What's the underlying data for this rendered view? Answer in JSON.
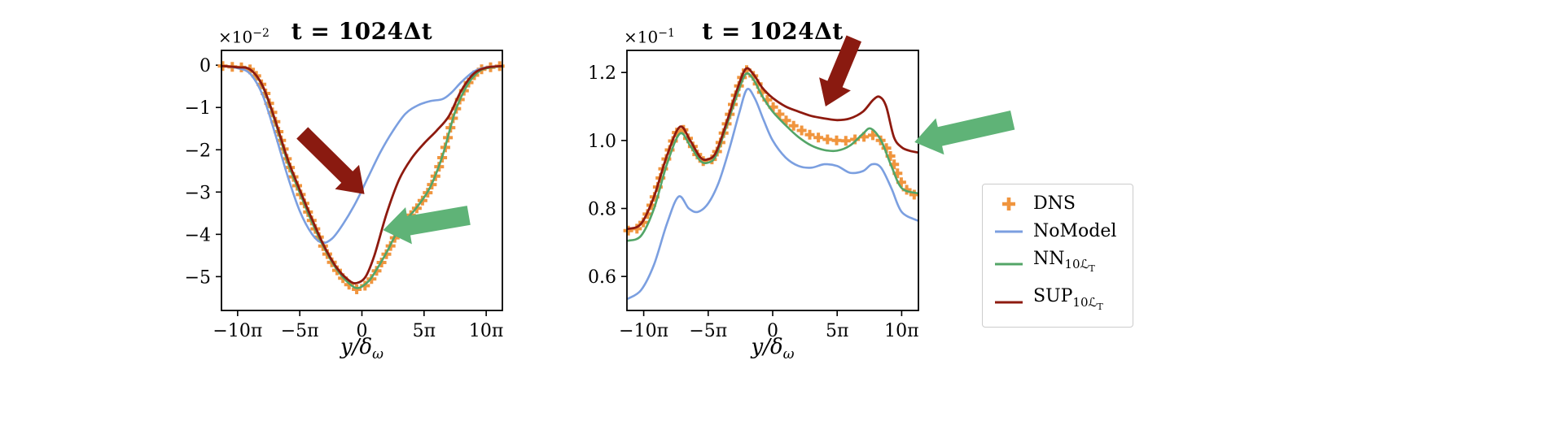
{
  "colors": {
    "dns": "#F0953E",
    "nomodel": "#7B9FE0",
    "nn": "#53A567",
    "sup": "#8E1A0F",
    "arrow_red": "#8A1A10",
    "arrow_green": "#5FB377",
    "axis": "#000000",
    "legend_border": "#cccccc"
  },
  "legend": {
    "items": [
      {
        "label": "DNS",
        "sub": "",
        "subsub": "",
        "type": "marker",
        "color": "dns"
      },
      {
        "label": "NoModel",
        "sub": "",
        "subsub": "",
        "type": "line",
        "color": "nomodel"
      },
      {
        "label": "NN",
        "sub": "10ℒ",
        "subsub": "T",
        "type": "line",
        "color": "nn"
      },
      {
        "label": "SUP",
        "sub": "10ℒ",
        "subsub": "T",
        "type": "line",
        "color": "sup"
      }
    ]
  },
  "chart_data": [
    {
      "type": "line",
      "title": "t = 1024Δt",
      "offset": {
        "base": "×10",
        "exp": "−2"
      },
      "xlabel": {
        "main": "y/δ",
        "sub": "ω"
      },
      "xlim": [
        -11.3,
        11.3
      ],
      "ylim": [
        -5.8,
        0.35
      ],
      "grid": false,
      "xticks": [
        {
          "v": -10,
          "label": "−10π"
        },
        {
          "v": -5,
          "label": "−5π"
        },
        {
          "v": 0,
          "label": "0"
        },
        {
          "v": 5,
          "label": "5π"
        },
        {
          "v": 10,
          "label": "10π"
        }
      ],
      "yticks": [
        {
          "v": 0,
          "label": "0"
        },
        {
          "v": -1,
          "label": "−1"
        },
        {
          "v": -2,
          "label": "−2"
        },
        {
          "v": -3,
          "label": "−3"
        },
        {
          "v": -4,
          "label": "−4"
        },
        {
          "v": -5,
          "label": "−5"
        }
      ],
      "series": [
        {
          "name": "DNS",
          "style": "marker",
          "color": "dns",
          "points": [
            [
              -11.2,
              -0.02
            ],
            [
              -10,
              -0.05
            ],
            [
              -9,
              -0.1
            ],
            [
              -8,
              -0.5
            ],
            [
              -7,
              -1.3
            ],
            [
              -6,
              -2.25
            ],
            [
              -5,
              -3.0
            ],
            [
              -4,
              -3.7
            ],
            [
              -3,
              -4.35
            ],
            [
              -2,
              -4.85
            ],
            [
              -1,
              -5.2
            ],
            [
              -0.3,
              -5.3
            ],
            [
              0.5,
              -5.15
            ],
            [
              1,
              -4.95
            ],
            [
              2,
              -4.45
            ],
            [
              2.7,
              -4.05
            ],
            [
              3.5,
              -3.7
            ],
            [
              4.5,
              -3.35
            ],
            [
              5.5,
              -2.9
            ],
            [
              6.5,
              -2.15
            ],
            [
              7.5,
              -1.1
            ],
            [
              8.5,
              -0.45
            ],
            [
              9.5,
              -0.12
            ],
            [
              10.5,
              -0.04
            ],
            [
              11.2,
              -0.02
            ]
          ]
        },
        {
          "name": "NoModel",
          "style": "line",
          "color": "nomodel",
          "points": [
            [
              -11.2,
              -0.02
            ],
            [
              -10,
              -0.07
            ],
            [
              -9,
              -0.2
            ],
            [
              -8,
              -0.7
            ],
            [
              -7,
              -1.6
            ],
            [
              -6,
              -2.6
            ],
            [
              -5,
              -3.45
            ],
            [
              -4,
              -4.0
            ],
            [
              -3.2,
              -4.2
            ],
            [
              -2.4,
              -4.1
            ],
            [
              -1.5,
              -3.75
            ],
            [
              -0.5,
              -3.25
            ],
            [
              0.5,
              -2.65
            ],
            [
              1.5,
              -2.05
            ],
            [
              2.5,
              -1.55
            ],
            [
              3.5,
              -1.15
            ],
            [
              4.5,
              -0.95
            ],
            [
              5.5,
              -0.85
            ],
            [
              6.5,
              -0.8
            ],
            [
              7.2,
              -0.65
            ],
            [
              8,
              -0.4
            ],
            [
              9,
              -0.15
            ],
            [
              10,
              -0.05
            ],
            [
              11.2,
              -0.02
            ]
          ]
        },
        {
          "name": "NN10LT",
          "style": "line",
          "color": "nn",
          "points": [
            [
              -11.2,
              -0.02
            ],
            [
              -10,
              -0.05
            ],
            [
              -9,
              -0.1
            ],
            [
              -8,
              -0.5
            ],
            [
              -7,
              -1.32
            ],
            [
              -6,
              -2.27
            ],
            [
              -5,
              -3.02
            ],
            [
              -4,
              -3.72
            ],
            [
              -3,
              -4.34
            ],
            [
              -2,
              -4.84
            ],
            [
              -1,
              -5.17
            ],
            [
              -0.3,
              -5.27
            ],
            [
              0.5,
              -5.12
            ],
            [
              1,
              -4.92
            ],
            [
              2,
              -4.42
            ],
            [
              2.7,
              -4.02
            ],
            [
              3.5,
              -3.68
            ],
            [
              4.5,
              -3.33
            ],
            [
              5.5,
              -2.88
            ],
            [
              6.5,
              -2.13
            ],
            [
              7.5,
              -1.1
            ],
            [
              8.5,
              -0.46
            ],
            [
              9.5,
              -0.13
            ],
            [
              10.5,
              -0.05
            ],
            [
              11.2,
              -0.03
            ]
          ]
        },
        {
          "name": "SUP10LT",
          "style": "line",
          "color": "sup",
          "points": [
            [
              -11.2,
              -0.02
            ],
            [
              -10,
              -0.05
            ],
            [
              -9,
              -0.1
            ],
            [
              -8,
              -0.48
            ],
            [
              -7,
              -1.28
            ],
            [
              -6,
              -2.2
            ],
            [
              -5,
              -2.95
            ],
            [
              -4,
              -3.65
            ],
            [
              -3,
              -4.3
            ],
            [
              -2,
              -4.8
            ],
            [
              -1,
              -5.1
            ],
            [
              -0.4,
              -5.15
            ],
            [
              0.3,
              -5.0
            ],
            [
              1,
              -4.5
            ],
            [
              2,
              -3.5
            ],
            [
              3,
              -2.7
            ],
            [
              4,
              -2.2
            ],
            [
              5,
              -1.85
            ],
            [
              6,
              -1.55
            ],
            [
              7,
              -1.2
            ],
            [
              8,
              -0.6
            ],
            [
              9,
              -0.2
            ],
            [
              10,
              -0.06
            ],
            [
              11.2,
              -0.02
            ]
          ]
        }
      ],
      "arrows": [
        {
          "name": "dark-red-arrow",
          "color": "arrow_red",
          "tail": [
            -4.8,
            -1.6
          ],
          "head": [
            0.2,
            -3.05
          ],
          "sw": 10,
          "hw": 21,
          "hl": 30
        },
        {
          "name": "green-arrow",
          "color": "arrow_green",
          "tail": [
            8.6,
            -3.55
          ],
          "head": [
            1.7,
            -3.9
          ],
          "sw": 12,
          "hw": 23,
          "hl": 32
        }
      ]
    },
    {
      "type": "line",
      "title": "t = 1024Δt",
      "offset": {
        "base": "×10",
        "exp": "−1"
      },
      "xlabel": {
        "main": "y/δ",
        "sub": "ω"
      },
      "xlim": [
        -11.3,
        11.3
      ],
      "ylim": [
        0.5,
        1.265
      ],
      "grid": false,
      "xticks": [
        {
          "v": -10,
          "label": "−10π"
        },
        {
          "v": -5,
          "label": "−5π"
        },
        {
          "v": 0,
          "label": "0"
        },
        {
          "v": 5,
          "label": "5π"
        },
        {
          "v": 10,
          "label": "10π"
        }
      ],
      "yticks": [
        {
          "v": 1.2,
          "label": "1.2"
        },
        {
          "v": 1.0,
          "label": "1.0"
        },
        {
          "v": 0.8,
          "label": "0.8"
        },
        {
          "v": 0.6,
          "label": "0.6"
        }
      ],
      "series": [
        {
          "name": "DNS",
          "style": "marker",
          "color": "dns",
          "points": [
            [
              -11.2,
              0.735
            ],
            [
              -10.2,
              0.75
            ],
            [
              -9.2,
              0.83
            ],
            [
              -8.2,
              0.95
            ],
            [
              -7.2,
              1.035
            ],
            [
              -6.4,
              0.995
            ],
            [
              -5.6,
              0.945
            ],
            [
              -5,
              0.94
            ],
            [
              -4.4,
              0.96
            ],
            [
              -3.6,
              1.045
            ],
            [
              -2.8,
              1.14
            ],
            [
              -2.1,
              1.205
            ],
            [
              -1.5,
              1.19
            ],
            [
              -0.8,
              1.14
            ],
            [
              0,
              1.1
            ],
            [
              1,
              1.06
            ],
            [
              2,
              1.035
            ],
            [
              3,
              1.015
            ],
            [
              4,
              1.005
            ],
            [
              5,
              1.0
            ],
            [
              6,
              1.0
            ],
            [
              7,
              1.01
            ],
            [
              7.8,
              1.015
            ],
            [
              8.6,
              0.99
            ],
            [
              9.3,
              0.94
            ],
            [
              10,
              0.875
            ],
            [
              10.7,
              0.845
            ],
            [
              11.2,
              0.84
            ]
          ]
        },
        {
          "name": "NoModel",
          "style": "line",
          "color": "nomodel",
          "points": [
            [
              -11.2,
              0.535
            ],
            [
              -10.2,
              0.56
            ],
            [
              -9.2,
              0.635
            ],
            [
              -8.2,
              0.755
            ],
            [
              -7.3,
              0.835
            ],
            [
              -6.5,
              0.8
            ],
            [
              -5.8,
              0.79
            ],
            [
              -5,
              0.815
            ],
            [
              -4.2,
              0.875
            ],
            [
              -3.4,
              0.97
            ],
            [
              -2.6,
              1.08
            ],
            [
              -2,
              1.15
            ],
            [
              -1.4,
              1.125
            ],
            [
              -0.7,
              1.06
            ],
            [
              0,
              1.0
            ],
            [
              1,
              0.95
            ],
            [
              2,
              0.925
            ],
            [
              3,
              0.92
            ],
            [
              4,
              0.93
            ],
            [
              5,
              0.925
            ],
            [
              6,
              0.905
            ],
            [
              7,
              0.91
            ],
            [
              7.7,
              0.93
            ],
            [
              8.4,
              0.92
            ],
            [
              9.2,
              0.86
            ],
            [
              10,
              0.79
            ],
            [
              11.2,
              0.765
            ]
          ]
        },
        {
          "name": "NN10LT",
          "style": "line",
          "color": "nn",
          "points": [
            [
              -11.2,
              0.705
            ],
            [
              -10.2,
              0.72
            ],
            [
              -9.2,
              0.8
            ],
            [
              -8.2,
              0.93
            ],
            [
              -7.2,
              1.02
            ],
            [
              -6.4,
              0.985
            ],
            [
              -5.6,
              0.94
            ],
            [
              -5,
              0.935
            ],
            [
              -4.4,
              0.955
            ],
            [
              -3.6,
              1.04
            ],
            [
              -2.8,
              1.13
            ],
            [
              -2.1,
              1.195
            ],
            [
              -1.5,
              1.18
            ],
            [
              -0.8,
              1.13
            ],
            [
              0,
              1.085
            ],
            [
              1,
              1.045
            ],
            [
              2,
              1.01
            ],
            [
              3,
              0.985
            ],
            [
              4,
              0.972
            ],
            [
              5,
              0.97
            ],
            [
              6,
              0.985
            ],
            [
              7,
              1.02
            ],
            [
              7.6,
              1.035
            ],
            [
              8.4,
              1.0
            ],
            [
              9.2,
              0.925
            ],
            [
              10,
              0.86
            ],
            [
              11.2,
              0.845
            ]
          ]
        },
        {
          "name": "SUP10LT",
          "style": "line",
          "color": "sup",
          "points": [
            [
              -11.2,
              0.74
            ],
            [
              -10.2,
              0.755
            ],
            [
              -9.2,
              0.835
            ],
            [
              -8.2,
              0.955
            ],
            [
              -7.2,
              1.04
            ],
            [
              -6.4,
              1.0
            ],
            [
              -5.6,
              0.95
            ],
            [
              -5,
              0.945
            ],
            [
              -4.4,
              0.965
            ],
            [
              -3.6,
              1.05
            ],
            [
              -2.8,
              1.145
            ],
            [
              -2.1,
              1.21
            ],
            [
              -1.5,
              1.195
            ],
            [
              -0.8,
              1.155
            ],
            [
              0,
              1.125
            ],
            [
              1,
              1.1
            ],
            [
              2,
              1.085
            ],
            [
              3,
              1.072
            ],
            [
              4,
              1.065
            ],
            [
              5,
              1.06
            ],
            [
              6,
              1.065
            ],
            [
              7,
              1.085
            ],
            [
              7.8,
              1.12
            ],
            [
              8.3,
              1.128
            ],
            [
              8.8,
              1.1
            ],
            [
              9.4,
              1.01
            ],
            [
              10,
              0.98
            ],
            [
              10.6,
              0.97
            ],
            [
              11.2,
              0.965
            ]
          ]
        }
      ],
      "arrows": [
        {
          "name": "dark-red-arrow",
          "color": "arrow_red",
          "tail": [
            6.3,
            1.3
          ],
          "head": [
            4.1,
            1.1
          ],
          "sw": 10,
          "hw": 21,
          "hl": 30
        },
        {
          "name": "green-arrow",
          "color": "arrow_green",
          "tail": [
            18.6,
            1.06
          ],
          "head": [
            11.0,
            0.995
          ],
          "sw": 12,
          "hw": 23,
          "hl": 32
        }
      ]
    }
  ]
}
